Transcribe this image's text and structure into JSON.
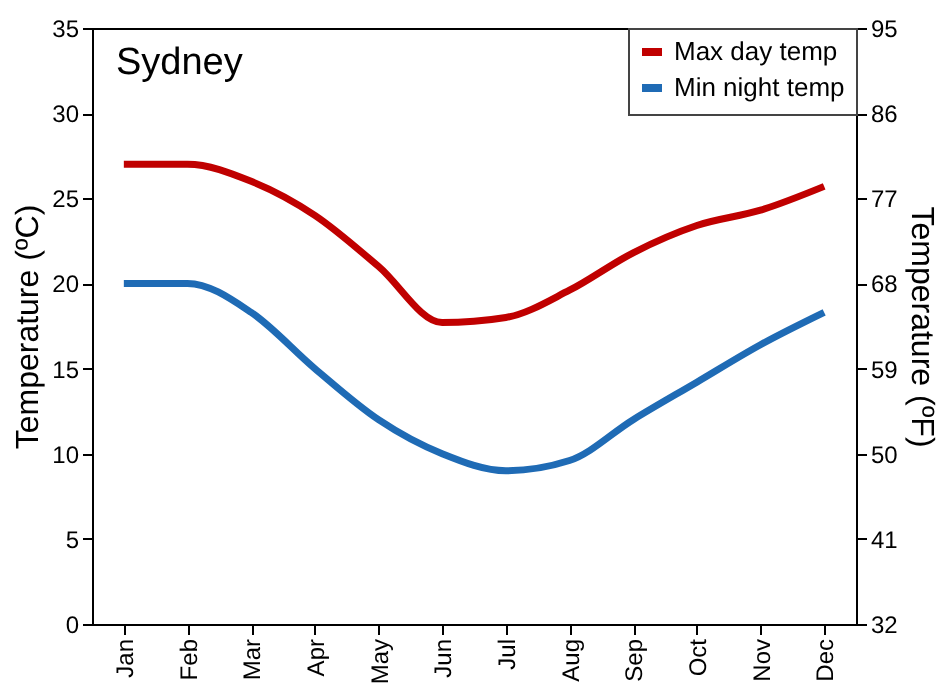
{
  "chart_data": {
    "type": "line",
    "title": "Sydney",
    "ylabel": "Temperature (ºC)",
    "y2label": "Temperature (ºF)",
    "categories": [
      "Jan",
      "Feb",
      "Mar",
      "Apr",
      "May",
      "Jun",
      "Jul",
      "Aug",
      "Sep",
      "Oct",
      "Nov",
      "Dec"
    ],
    "series": [
      {
        "name": "Max day temp",
        "color": "#c00000",
        "values": [
          27,
          27,
          26,
          24,
          21,
          17.7,
          18,
          19.6,
          21.8,
          23.4,
          24.3,
          25.7
        ]
      },
      {
        "name": "Min night temp",
        "color": "#1f6bb5",
        "values": [
          20,
          20,
          18.3,
          15,
          12,
          10,
          9,
          9.6,
          12,
          14.2,
          16.4,
          18.3
        ]
      }
    ],
    "ylim": [
      0,
      35
    ],
    "yticks": [
      0,
      5,
      10,
      15,
      20,
      25,
      30,
      35
    ],
    "y2lim": [
      32,
      95
    ],
    "y2ticks": [
      32,
      41,
      50,
      59,
      68,
      77,
      86,
      95
    ],
    "legend": "top right",
    "grid": false,
    "marker": "none",
    "line_style": "solid"
  }
}
